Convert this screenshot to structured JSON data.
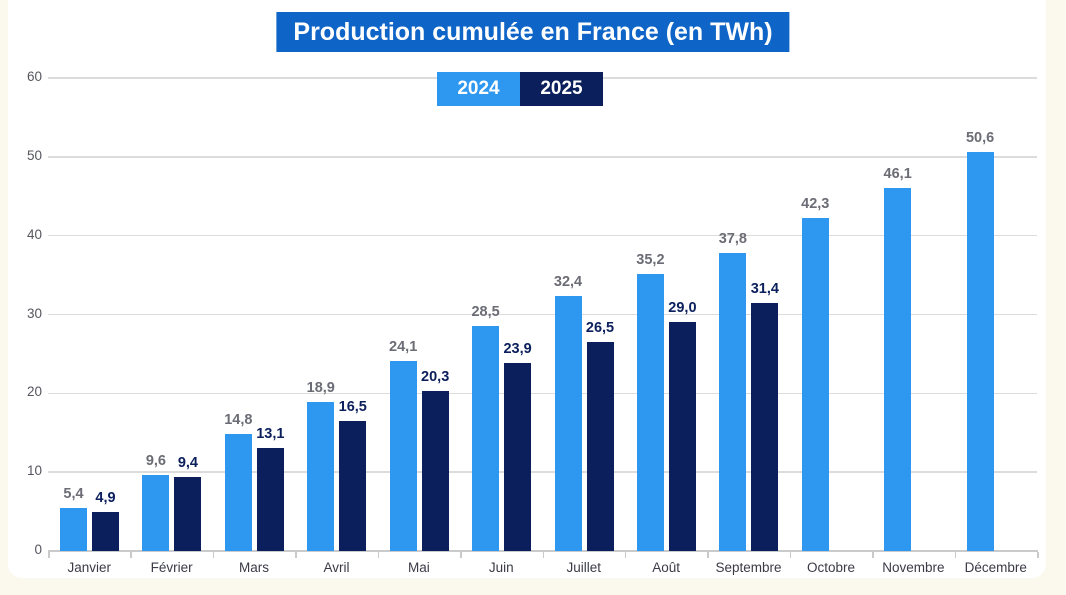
{
  "page": {
    "background_color": "#FBF8EE",
    "card_color": "#FFFFFF"
  },
  "chart_data": {
    "type": "bar",
    "title": "Production cumulée en France (en TWh)",
    "title_bg_color": "#0F64C7",
    "title_text_color": "#FFFFFF",
    "categories": [
      "Janvier",
      "Février",
      "Mars",
      "Avril",
      "Mai",
      "Juin",
      "Juillet",
      "Août",
      "Septembre",
      "Octobre",
      "Novembre",
      "Décembre"
    ],
    "series": [
      {
        "name": "2024",
        "color": "#2E97F0",
        "label_color": "#6B6C75",
        "values": [
          5.4,
          9.6,
          14.8,
          18.9,
          24.1,
          28.5,
          32.4,
          35.2,
          37.8,
          42.3,
          46.1,
          50.6
        ]
      },
      {
        "name": "2025",
        "color": "#0B1F5C",
        "label_color": "#0B1F5C",
        "values": [
          4.9,
          9.4,
          13.1,
          16.5,
          20.3,
          23.9,
          26.5,
          29.0,
          31.4,
          null,
          null,
          null
        ]
      }
    ],
    "value_labels_2024": [
      "5,4",
      "9,6",
      "14,8",
      "18,9",
      "24,1",
      "28,5",
      "32,4",
      "35,2",
      "37,8",
      "42,3",
      "46,1",
      "50,6"
    ],
    "value_labels_2025": [
      "4,9",
      "9,4",
      "13,1",
      "16,5",
      "20,3",
      "23,9",
      "26,5",
      "29,0",
      "31,4"
    ],
    "y_ticks": [
      0,
      10,
      20,
      30,
      40,
      50,
      60
    ],
    "ylim": [
      0,
      60
    ],
    "grid": true,
    "gridline_color": "#DCDCDC",
    "axis_color": "#C9CACC",
    "ytick_label_color": "#55565E",
    "xtick_label_color": "#3A3B47",
    "legend_position": "top-center"
  }
}
